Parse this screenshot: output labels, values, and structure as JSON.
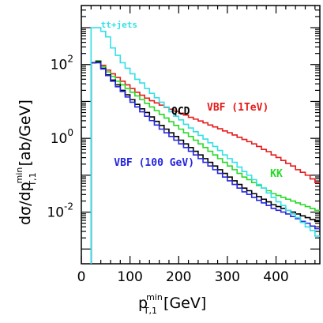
{
  "chart_data": {
    "type": "line",
    "xlabel_base": "p",
    "xlabel_sup": "min",
    "xlabel_sub": "T,1",
    "xlabel_unit": "[GeV]",
    "ylabel_main": "dσ/dp",
    "ylabel_sup": "min",
    "ylabel_sub": "T,1",
    "ylabel_unit": "[ab/GeV]",
    "x_ticks": [
      "0",
      "100",
      "200",
      "300",
      "400"
    ],
    "x_tick_values": [
      0,
      100,
      200,
      300,
      400
    ],
    "y_ticks": [
      {
        "base": "10",
        "exp": "2",
        "value": 2
      },
      {
        "base": "10",
        "exp": "0",
        "value": 0
      },
      {
        "base": "10",
        "exp": "-2",
        "value": -2
      }
    ],
    "y_scale": "log",
    "xlim": [
      0,
      490
    ],
    "ylim_log10": [
      -3.4,
      3.6
    ],
    "bin_width": 10,
    "series": [
      {
        "name": "tt+jets",
        "color": "#33e0e6",
        "x": [
          20,
          30,
          40,
          50,
          60,
          70,
          80,
          90,
          100,
          110,
          120,
          130,
          140,
          150,
          160,
          170,
          180,
          190,
          200,
          210,
          220,
          230,
          240,
          250,
          260,
          270,
          280,
          290,
          300,
          310,
          320,
          330,
          340,
          350,
          360,
          370,
          380,
          390,
          400,
          410,
          420,
          430,
          440,
          450,
          460,
          470,
          480
        ],
        "y": [
          3.0,
          3.0,
          2.9,
          2.75,
          2.45,
          2.25,
          2.05,
          1.9,
          1.75,
          1.6,
          1.5,
          1.35,
          1.22,
          1.1,
          0.98,
          0.85,
          0.72,
          0.6,
          0.5,
          0.38,
          0.28,
          0.18,
          0.08,
          -0.02,
          -0.12,
          -0.22,
          -0.33,
          -0.45,
          -0.55,
          -0.65,
          -0.78,
          -0.9,
          -1.0,
          -1.12,
          -1.25,
          -1.35,
          -1.48,
          -1.6,
          -1.72,
          -1.82,
          -1.95,
          -2.05,
          -2.15,
          -2.28,
          -2.4,
          -2.5,
          -2.65
        ]
      },
      {
        "name": "VBF (1TeV)",
        "color": "#e61a1a",
        "x": [
          20,
          30,
          40,
          50,
          60,
          70,
          80,
          90,
          100,
          110,
          120,
          130,
          140,
          150,
          160,
          170,
          180,
          190,
          200,
          210,
          220,
          230,
          240,
          250,
          260,
          270,
          280,
          290,
          300,
          310,
          320,
          330,
          340,
          350,
          360,
          370,
          380,
          390,
          400,
          410,
          420,
          430,
          440,
          450,
          460,
          470,
          480
        ],
        "y": [
          2.05,
          2.1,
          1.98,
          1.85,
          1.75,
          1.65,
          1.55,
          1.45,
          1.35,
          1.25,
          1.17,
          1.09,
          1.02,
          0.96,
          0.9,
          0.84,
          0.79,
          0.73,
          0.68,
          0.63,
          0.57,
          0.52,
          0.47,
          0.42,
          0.36,
          0.31,
          0.26,
          0.2,
          0.15,
          0.09,
          0.03,
          -0.03,
          -0.09,
          -0.15,
          -0.22,
          -0.3,
          -0.36,
          -0.45,
          -0.52,
          -0.6,
          -0.68,
          -0.75,
          -0.85,
          -0.92,
          -1.0,
          -1.1,
          -1.2
        ]
      },
      {
        "name": "KK",
        "color": "#26d926",
        "x": [
          20,
          30,
          40,
          50,
          60,
          70,
          80,
          90,
          100,
          110,
          120,
          130,
          140,
          150,
          160,
          170,
          180,
          190,
          200,
          210,
          220,
          230,
          240,
          250,
          260,
          270,
          280,
          290,
          300,
          310,
          320,
          330,
          340,
          350,
          360,
          370,
          380,
          390,
          400,
          410,
          420,
          430,
          440,
          450,
          460,
          470,
          480
        ],
        "y": [
          2.05,
          2.1,
          1.95,
          1.8,
          1.68,
          1.55,
          1.45,
          1.35,
          1.25,
          1.15,
          1.05,
          0.95,
          0.85,
          0.75,
          0.65,
          0.55,
          0.45,
          0.35,
          0.25,
          0.15,
          0.05,
          -0.05,
          -0.15,
          -0.25,
          -0.35,
          -0.45,
          -0.55,
          -0.65,
          -0.75,
          -0.85,
          -0.95,
          -1.05,
          -1.12,
          -1.2,
          -1.28,
          -1.35,
          -1.42,
          -1.5,
          -1.55,
          -1.6,
          -1.65,
          -1.7,
          -1.75,
          -1.8,
          -1.85,
          -1.9,
          -1.95
        ]
      },
      {
        "name": "QCD",
        "color": "#000000",
        "x": [
          20,
          30,
          40,
          50,
          60,
          70,
          80,
          90,
          100,
          110,
          120,
          130,
          140,
          150,
          160,
          170,
          180,
          190,
          200,
          210,
          220,
          230,
          240,
          250,
          260,
          270,
          280,
          290,
          300,
          310,
          320,
          330,
          340,
          350,
          360,
          370,
          380,
          390,
          400,
          410,
          420,
          430,
          440,
          450,
          460,
          470,
          480
        ],
        "y": [
          2.05,
          2.08,
          1.9,
          1.72,
          1.58,
          1.45,
          1.3,
          1.18,
          1.05,
          0.92,
          0.8,
          0.7,
          0.58,
          0.46,
          0.35,
          0.25,
          0.15,
          0.05,
          -0.05,
          -0.15,
          -0.25,
          -0.35,
          -0.45,
          -0.55,
          -0.65,
          -0.75,
          -0.85,
          -0.95,
          -1.05,
          -1.15,
          -1.25,
          -1.35,
          -1.42,
          -1.5,
          -1.58,
          -1.65,
          -1.72,
          -1.8,
          -1.85,
          -1.9,
          -1.95,
          -2.0,
          -2.05,
          -2.1,
          -2.15,
          -2.2,
          -2.25
        ]
      },
      {
        "name": "VBF (100 GeV)",
        "color": "#2626e0",
        "x": [
          20,
          30,
          40,
          50,
          60,
          70,
          80,
          90,
          100,
          110,
          120,
          130,
          140,
          150,
          160,
          170,
          180,
          190,
          200,
          210,
          220,
          230,
          240,
          250,
          260,
          270,
          280,
          290,
          300,
          310,
          320,
          330,
          340,
          350,
          360,
          370,
          380,
          390,
          400,
          410,
          420,
          430,
          440,
          450,
          460,
          470,
          480
        ],
        "y": [
          2.05,
          2.05,
          1.88,
          1.7,
          1.55,
          1.4,
          1.27,
          1.12,
          0.98,
          0.85,
          0.72,
          0.6,
          0.48,
          0.36,
          0.25,
          0.15,
          0.05,
          -0.05,
          -0.15,
          -0.25,
          -0.35,
          -0.45,
          -0.55,
          -0.65,
          -0.75,
          -0.85,
          -0.95,
          -1.05,
          -1.15,
          -1.25,
          -1.35,
          -1.45,
          -1.52,
          -1.6,
          -1.68,
          -1.75,
          -1.82,
          -1.9,
          -1.95,
          -2.0,
          -2.05,
          -2.12,
          -2.18,
          -2.25,
          -2.3,
          -2.38,
          -2.45
        ]
      }
    ],
    "annotations": [
      {
        "text": "tt+jets",
        "color": "#33e0e6",
        "x": 40,
        "y": 3.0
      },
      {
        "text": "VBF (1TeV)",
        "color": "#e61a1a",
        "x": 258,
        "y": 0.75
      },
      {
        "text": "QCD",
        "color": "#000000",
        "x": 185,
        "y": 0.65
      },
      {
        "text": "KK",
        "color": "#26d926",
        "x": 388,
        "y": -1.05
      },
      {
        "text": "VBF (100 GeV)",
        "color": "#2626e0",
        "x": 67,
        "y": -0.75
      }
    ]
  }
}
